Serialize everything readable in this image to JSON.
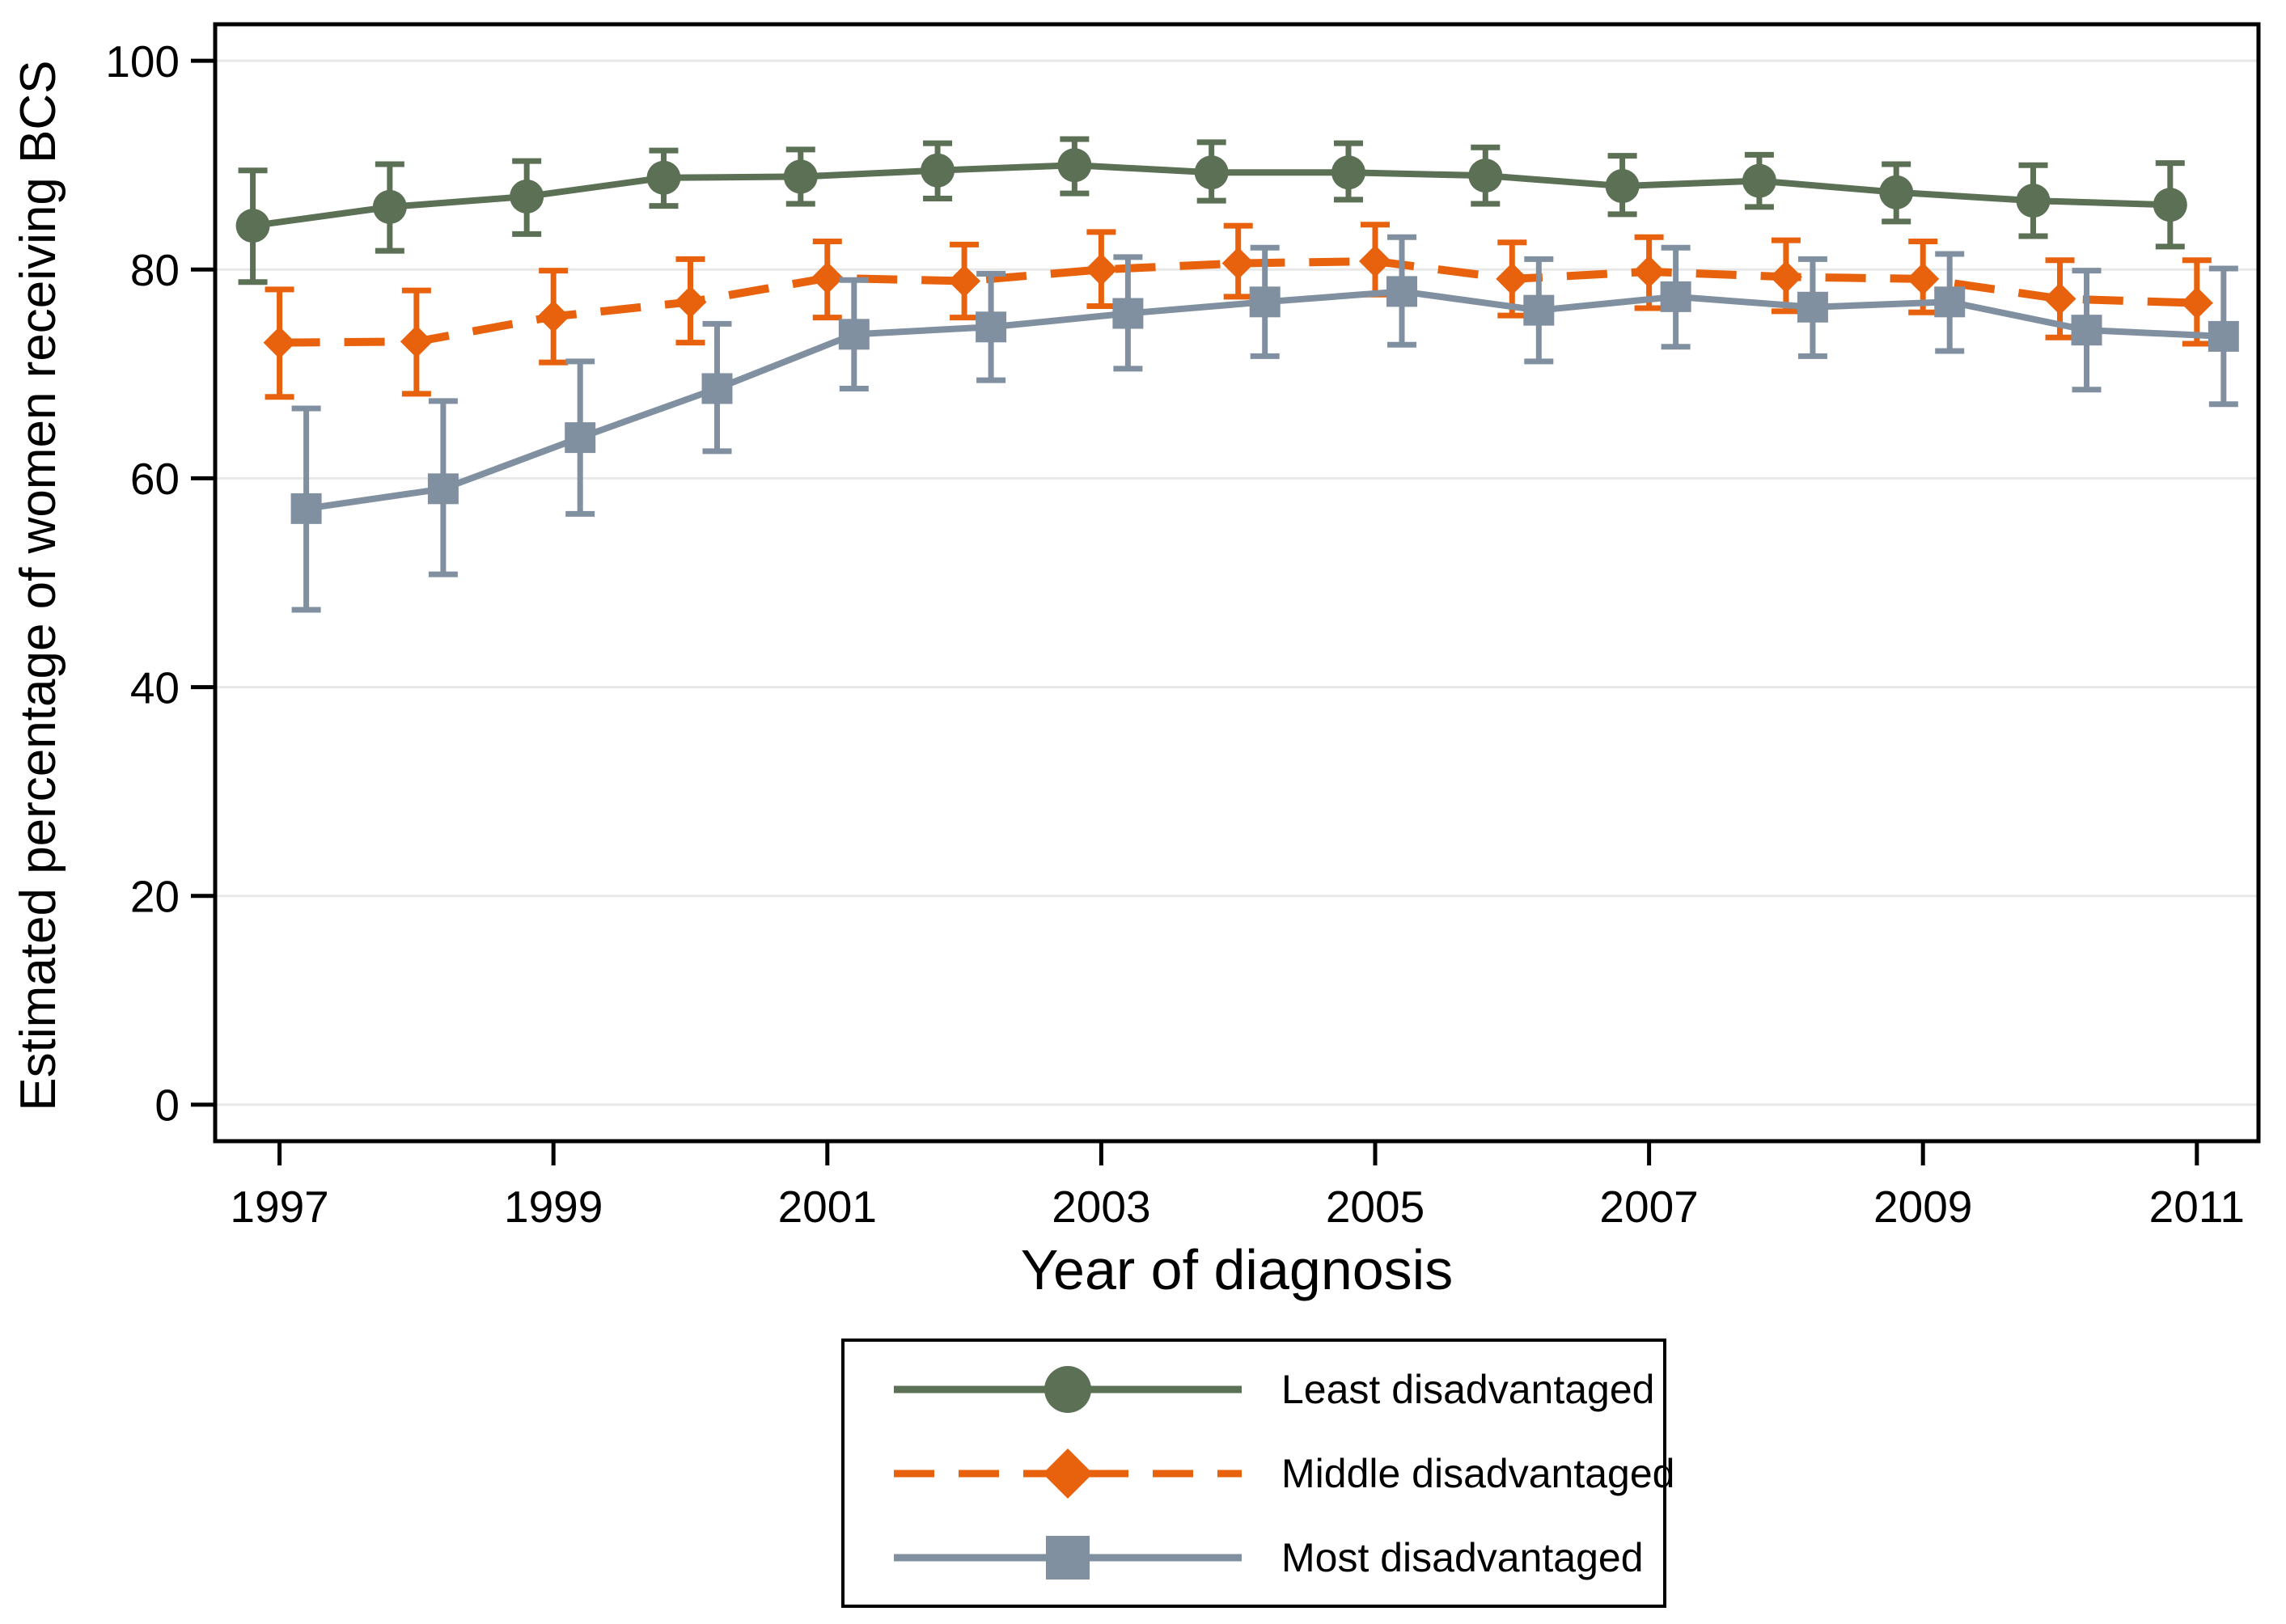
{
  "chart_data": {
    "type": "line",
    "title": "",
    "xlabel": "Year of diagnosis",
    "ylabel": "Estimated percentage of women receiving BCS",
    "x_ticks": [
      1997,
      1999,
      2001,
      2003,
      2005,
      2007,
      2009,
      2011
    ],
    "y_ticks": [
      0,
      20,
      40,
      60,
      80,
      100
    ],
    "xlim": [
      1996.53,
      2011.45
    ],
    "ylim": [
      -3.5,
      103.5
    ],
    "grid": "horizontal",
    "gridline_color": "#e8e8e8",
    "axis_color": "#000000",
    "legend_position": "below-center",
    "error_bars": true,
    "years": [
      1997,
      1998,
      1999,
      2000,
      2001,
      2002,
      2003,
      2004,
      2005,
      2006,
      2007,
      2008,
      2009,
      2010,
      2011
    ],
    "series": [
      {
        "name": "Least disadvantaged",
        "color": "#5b7055",
        "marker": "circle",
        "line_style": "solid",
        "x_offset": -0.195,
        "values": [
          84.2,
          86.0,
          87.0,
          88.8,
          88.9,
          89.5,
          90.0,
          89.3,
          89.3,
          89.0,
          88.0,
          88.5,
          87.4,
          86.6,
          86.2
        ],
        "ci_low": [
          78.8,
          81.8,
          83.4,
          86.1,
          86.3,
          86.8,
          87.3,
          86.6,
          86.7,
          86.3,
          85.3,
          86.0,
          84.6,
          83.2,
          82.2
        ],
        "ci_high": [
          89.5,
          90.1,
          90.4,
          91.4,
          91.5,
          92.1,
          92.5,
          92.2,
          92.1,
          91.7,
          90.9,
          91.0,
          90.1,
          90.0,
          90.2
        ]
      },
      {
        "name": "Middle disadvantaged",
        "color": "#e8610c",
        "marker": "diamond",
        "line_style": "dashed",
        "x_offset": 0,
        "values": [
          73.0,
          73.1,
          75.5,
          76.9,
          79.2,
          78.9,
          80.0,
          80.6,
          80.8,
          79.1,
          79.8,
          79.3,
          79.1,
          77.2,
          76.8
        ],
        "ci_low": [
          67.8,
          68.1,
          71.1,
          73.0,
          75.4,
          75.4,
          76.5,
          77.4,
          77.6,
          75.6,
          76.3,
          76.0,
          75.9,
          73.5,
          72.9
        ],
        "ci_high": [
          78.1,
          78.0,
          79.9,
          81.0,
          82.7,
          82.4,
          83.6,
          84.2,
          84.3,
          82.6,
          83.1,
          82.8,
          82.7,
          80.9,
          80.9
        ]
      },
      {
        "name": "Most disadvantaged",
        "color": "#8190a0",
        "marker": "square",
        "line_style": "solid",
        "x_offset": 0.195,
        "values": [
          57.1,
          59.0,
          63.9,
          68.6,
          73.8,
          74.5,
          75.8,
          76.9,
          77.9,
          76.1,
          77.4,
          76.4,
          76.9,
          74.2,
          73.6
        ],
        "ci_low": [
          47.4,
          50.8,
          56.6,
          62.6,
          68.6,
          69.4,
          70.5,
          71.7,
          72.8,
          71.2,
          72.6,
          71.7,
          72.2,
          68.5,
          67.1
        ],
        "ci_high": [
          66.7,
          67.4,
          71.2,
          74.8,
          79.0,
          79.6,
          81.2,
          82.1,
          83.1,
          81.0,
          82.1,
          81.0,
          81.5,
          79.9,
          80.1
        ]
      }
    ]
  }
}
